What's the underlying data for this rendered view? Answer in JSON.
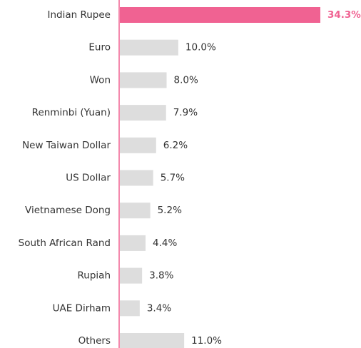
{
  "chart_data": {
    "type": "bar",
    "categories": [
      "Indian Rupee",
      "Euro",
      "Won",
      "Renminbi (Yuan)",
      "New Taiwan Dollar",
      "US Dollar",
      "Vietnamese Dong",
      "South African Rand",
      "Rupiah",
      "UAE Dirham",
      "Others"
    ],
    "values": [
      34.3,
      10.0,
      8.0,
      7.9,
      6.2,
      5.7,
      5.2,
      4.4,
      3.8,
      3.4,
      11.0
    ],
    "value_labels": [
      "34.3%",
      "10.0%",
      "8.0%",
      "7.9%",
      "6.2%",
      "5.7%",
      "5.2%",
      "4.4%",
      "3.8%",
      "3.4%",
      "11.0%"
    ],
    "colors": [
      "#f06292",
      "#dddddd",
      "#dddddd",
      "#dddddd",
      "#dddddd",
      "#dddddd",
      "#dddddd",
      "#dddddd",
      "#dddddd",
      "#dddddd",
      "#dddddd"
    ]
  }
}
